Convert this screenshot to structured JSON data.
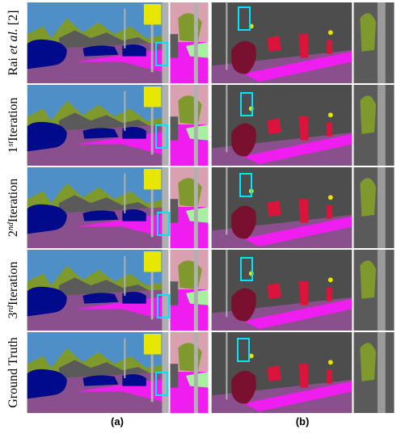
{
  "figure": {
    "rows": [
      {
        "parts": [
          "Rai ",
          "et al.",
          " [2]"
        ]
      },
      {
        "parts": [
          "1",
          "st",
          "Iteration"
        ]
      },
      {
        "parts": [
          "2",
          "nd",
          "Iteration"
        ]
      },
      {
        "parts": [
          "3",
          "rd",
          "Iteration"
        ]
      },
      {
        "parts": [
          "Ground Truth"
        ]
      }
    ],
    "columns": [
      "(a)",
      "(b)"
    ]
  }
}
